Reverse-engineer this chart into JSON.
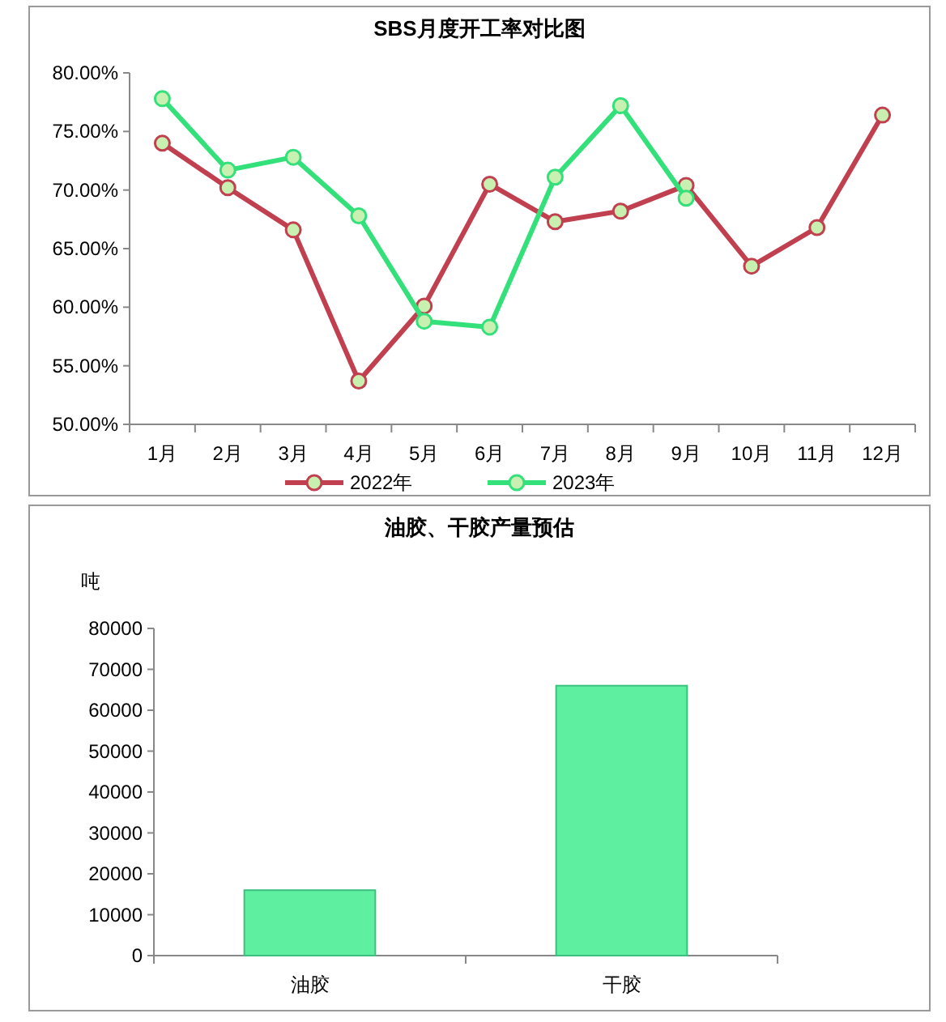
{
  "chart_data": [
    {
      "type": "line",
      "title": "SBS月度开工率对比图",
      "categories": [
        "1月",
        "2月",
        "3月",
        "4月",
        "5月",
        "6月",
        "7月",
        "8月",
        "9月",
        "10月",
        "11月",
        "12月"
      ],
      "series": [
        {
          "name": "2022年",
          "color": "#c0404f",
          "values": [
            74.0,
            70.2,
            66.6,
            53.7,
            60.1,
            70.5,
            67.3,
            68.2,
            70.4,
            63.5,
            66.8,
            76.4
          ]
        },
        {
          "name": "2023年",
          "color": "#33e07a",
          "values": [
            77.8,
            71.7,
            72.8,
            67.8,
            58.8,
            58.3,
            71.1,
            77.2,
            69.3,
            null,
            null,
            null
          ]
        }
      ],
      "ylim": [
        50,
        80
      ],
      "yticks": [
        {
          "value": 50,
          "label": "50.00%"
        },
        {
          "value": 55,
          "label": "55.00%"
        },
        {
          "value": 60,
          "label": "60.00%"
        },
        {
          "value": 65,
          "label": "65.00%"
        },
        {
          "value": 70,
          "label": "70.00%"
        },
        {
          "value": 75,
          "label": "75.00%"
        },
        {
          "value": 80,
          "label": "80.00%"
        }
      ],
      "marker": "circle",
      "grid": false,
      "legend": "bottom"
    },
    {
      "type": "bar",
      "title": "油胶、干胶产量预估",
      "ylabel": "吨",
      "categories": [
        "油胶",
        "干胶"
      ],
      "values": [
        16000,
        66000
      ],
      "color": "#5ef0a0",
      "ylim": [
        0,
        80000
      ],
      "yticks": [
        0,
        10000,
        20000,
        30000,
        40000,
        50000,
        60000,
        70000,
        80000
      ],
      "grid": false
    }
  ]
}
